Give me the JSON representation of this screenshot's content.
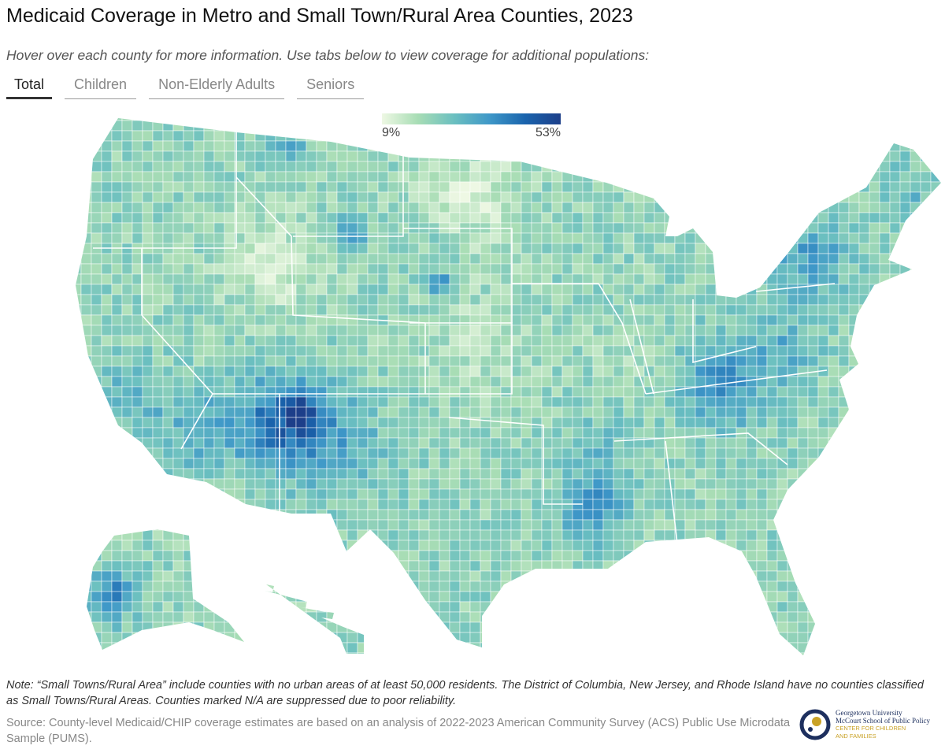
{
  "header": {
    "title": "Medicaid Coverage in Metro and Small Town/Rural Area Counties, 2023",
    "subtitle": "Hover over each county for more information. Use tabs below to view coverage for additional populations:"
  },
  "tabs": [
    {
      "label": "Total",
      "active": true
    },
    {
      "label": "Children",
      "active": false
    },
    {
      "label": "Non-Elderly Adults",
      "active": false
    },
    {
      "label": "Seniors",
      "active": false
    }
  ],
  "legend": {
    "min_label": "9%",
    "max_label": "53%",
    "min_value": 9,
    "max_value": 53,
    "color_scale": [
      "#eef8e4",
      "#a8ddb5",
      "#6cc0c0",
      "#3f98c8",
      "#1a64ad",
      "#1d3f8a"
    ],
    "na_color": "#dddddd"
  },
  "map": {
    "type": "choropleth",
    "unit": "county",
    "measure": "Medicaid/CHIP coverage rate (%)",
    "border_color": "#ffffff"
  },
  "footer": {
    "note": "Note: “Small Towns/Rural Area” include counties with no urban areas of at least 50,000 residents. The District of Columbia, New Jersey, and Rhode Island have no counties classified as Small Towns/Rural Areas. Counties marked N/A are suppressed due to poor reliability.",
    "source": "Source: County-level Medicaid/CHIP coverage estimates are based on an analysis of 2022-2023 American Community Survey (ACS) Public Use Microdata Sample (PUMS).",
    "logo": {
      "line1": "Georgetown University",
      "line2": "McCourt School of Public Policy",
      "line3": "CENTER FOR CHILDREN",
      "line4": "AND FAMILIES"
    }
  }
}
